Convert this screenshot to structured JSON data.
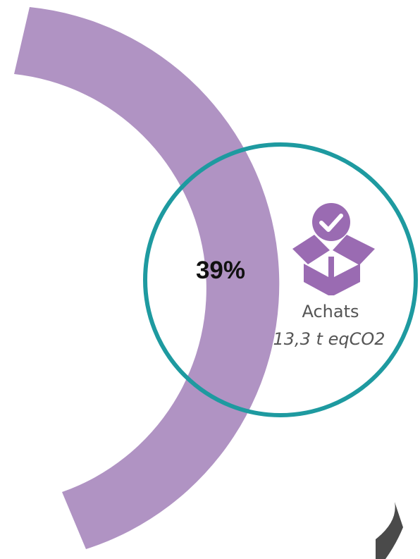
{
  "chart_data": {
    "type": "pie",
    "slices": [
      {
        "percent_label": "39%",
        "percent": 39,
        "category": "Achats",
        "value_label": "13,3 t eqCO2",
        "color": "#b093c3"
      }
    ],
    "colors": {
      "ring_outline": "#1e9aa0",
      "icon": "#9a6bb2",
      "partial_arc": "#4a4a4a"
    },
    "icons": [
      "box-check-icon"
    ]
  }
}
